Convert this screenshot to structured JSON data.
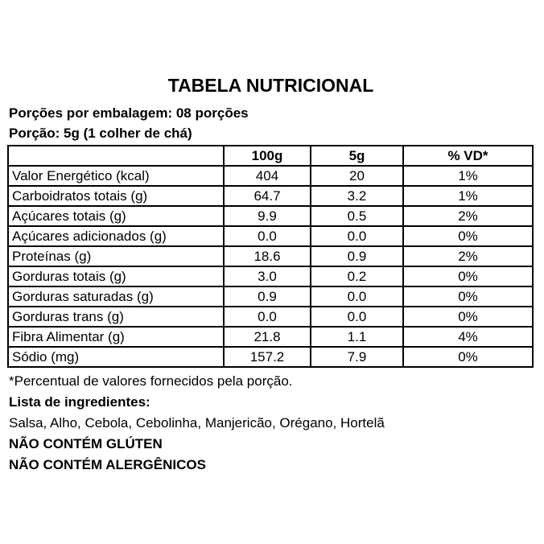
{
  "title": "TABELA NUTRICIONAL",
  "servings_line": "Porções por embalagem: 08  porções",
  "portion_line": "Porção: 5g (1 colher de chá)",
  "table": {
    "columns": [
      "",
      "100g",
      "5g",
      "% VD*"
    ],
    "rows": [
      {
        "label": "Valor Energético (kcal)",
        "per100g": "404",
        "per5g": "20",
        "vd": "1%"
      },
      {
        "label": "Carboidratos totais (g)",
        "per100g": "64.7",
        "per5g": "3.2",
        "vd": "1%"
      },
      {
        "label": "Açúcares totais (g)",
        "per100g": "9.9",
        "per5g": "0.5",
        "vd": "2%"
      },
      {
        "label": "Açúcares adicionados (g)",
        "per100g": "0.0",
        "per5g": "0.0",
        "vd": "0%"
      },
      {
        "label": "Proteínas (g)",
        "per100g": "18.6",
        "per5g": "0.9",
        "vd": "2%"
      },
      {
        "label": "Gorduras totais (g)",
        "per100g": "3.0",
        "per5g": "0.2",
        "vd": "0%"
      },
      {
        "label": "Gorduras saturadas (g)",
        "per100g": "0.9",
        "per5g": "0.0",
        "vd": "0%"
      },
      {
        "label": "Gorduras trans (g)",
        "per100g": "0.0",
        "per5g": "0.0",
        "vd": "0%"
      },
      {
        "label": "Fibra Alimentar (g)",
        "per100g": "21.8",
        "per5g": "1.1",
        "vd": "4%"
      },
      {
        "label": "Sódio (mg)",
        "per100g": "157.2",
        "per5g": "7.9",
        "vd": "0%"
      }
    ]
  },
  "footnote": "*Percentual de valores fornecidos pela porção.",
  "ingredients_heading": "Lista de ingredientes:",
  "ingredients": "Salsa, Alho, Cebola, Cebolinha, Manjericão, Orégano, Hortelã",
  "claims": [
    "NÃO CONTÉM GLÚTEN",
    "NÃO CONTÉM ALERGÊNICOS"
  ],
  "colors": {
    "background": "#ffffff",
    "text": "#000000",
    "table_border": "#000000"
  }
}
